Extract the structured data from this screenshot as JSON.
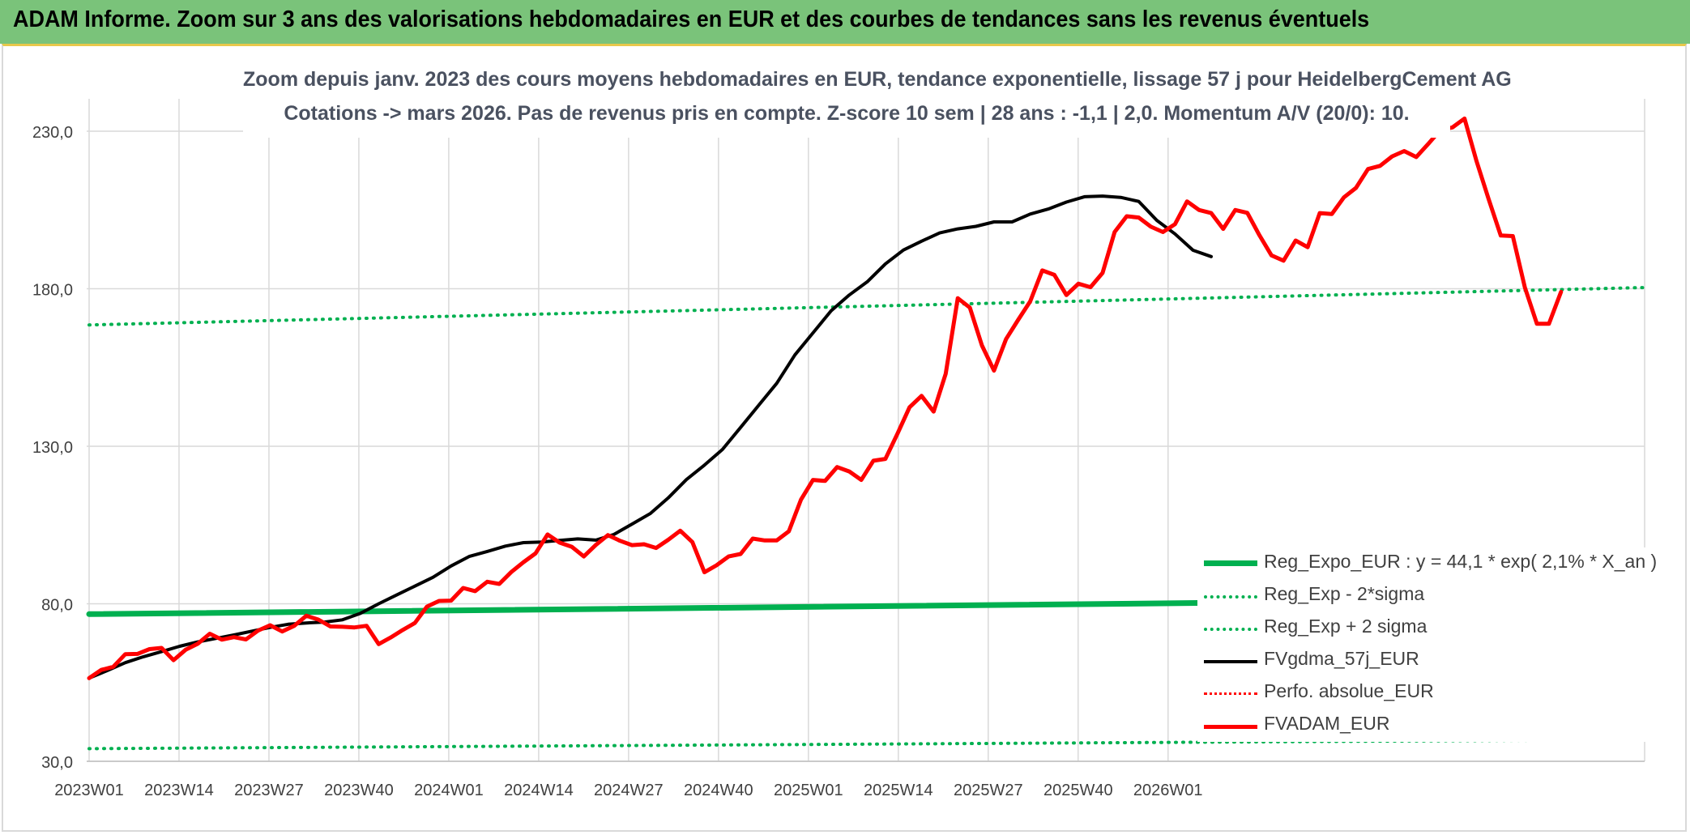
{
  "header": {
    "title": "ADAM Informe. Zoom sur 3 ans des valorisations hebdomadaires en EUR et des courbes de tendances sans les revenus éventuels"
  },
  "chart_data": {
    "type": "line",
    "subtitle_line1": "Zoom depuis janv. 2023 des cours moyens hebdomadaires en EUR, tendance exponentielle, lissage 57 j pour HeidelbergCement AG",
    "subtitle_line2": "Cotations -> mars 2026. Pas de revenus pris en compte. Z-score 10 sem | 28 ans : -1,1 | 2,0. Momentum A/V (20/0): 10.",
    "xlabel": "",
    "ylabel": "",
    "x_tick_labels": [
      "2023W01",
      "2023W14",
      "2023W27",
      "2023W40",
      "2024W01",
      "2024W14",
      "2024W27",
      "2024W40",
      "2025W01",
      "2025W14",
      "2025W27",
      "2025W40",
      "2026W01"
    ],
    "y_tick_labels": [
      "30,0",
      "80,0",
      "130,0",
      "180,0",
      "230,0"
    ],
    "ylim": [
      30,
      230
    ],
    "grid": "vertical and horizontal",
    "legend_position": "bottom-right",
    "colors": {
      "trend": "#00b050",
      "sigma": "#00b050",
      "smooth": "#000000",
      "perf": "#ff0000",
      "adam": "#ff0000"
    },
    "weeks": 132,
    "series": [
      {
        "name": "Reg_Expo_EUR : y = 44,1 * exp( 2,1% *  X_an )",
        "style": "thick-solid",
        "points": [
          [
            0,
            76.7
          ],
          [
            131,
            81.7
          ]
        ]
      },
      {
        "name": "Reg_Exp - 2*sigma",
        "style": "dotted",
        "points": [
          [
            0,
            34.0
          ],
          [
            131,
            36.9
          ]
        ]
      },
      {
        "name": "Reg_Exp + 2 sigma",
        "style": "dotted",
        "points": [
          [
            0,
            168.5
          ],
          [
            131,
            180.4
          ]
        ]
      },
      {
        "name": "FVgdma_57j_EUR",
        "style": "solid",
        "points": [
          [
            0,
            56.4
          ],
          [
            3,
            58.8
          ],
          [
            6,
            61.3
          ],
          [
            9,
            63.2
          ],
          [
            12,
            64.8
          ],
          [
            15,
            66.5
          ],
          [
            18,
            67.9
          ],
          [
            21,
            69.0
          ],
          [
            24,
            70.1
          ],
          [
            27,
            71.3
          ],
          [
            30,
            72.5
          ],
          [
            33,
            73.5
          ],
          [
            36,
            73.9
          ],
          [
            39,
            74.2
          ],
          [
            42,
            74.9
          ],
          [
            45,
            77.0
          ],
          [
            48,
            80.0
          ],
          [
            51,
            82.8
          ],
          [
            54,
            85.6
          ],
          [
            57,
            88.4
          ],
          [
            60,
            92.0
          ],
          [
            63,
            95.0
          ],
          [
            66,
            96.6
          ],
          [
            69,
            98.3
          ],
          [
            72,
            99.4
          ],
          [
            75,
            99.6
          ],
          [
            78,
            100.1
          ],
          [
            81,
            100.6
          ],
          [
            84,
            100.2
          ],
          [
            87,
            102.0
          ],
          [
            90,
            105.3
          ],
          [
            93,
            108.6
          ],
          [
            96,
            113.6
          ],
          [
            99,
            119.4
          ],
          [
            102,
            124.0
          ],
          [
            105,
            129.0
          ],
          [
            108,
            136.0
          ],
          [
            111,
            143.0
          ],
          [
            114,
            150.0
          ],
          [
            117,
            159.0
          ],
          [
            120,
            166.0
          ],
          [
            123,
            173.0
          ],
          [
            126,
            178.0
          ],
          [
            129,
            182.2
          ],
          [
            132,
            187.9
          ],
          [
            135,
            192.3
          ],
          [
            138,
            195.1
          ],
          [
            141,
            197.7
          ],
          [
            144,
            199.0
          ],
          [
            147,
            199.8
          ],
          [
            150,
            201.2
          ],
          [
            153,
            201.2
          ],
          [
            156,
            203.7
          ],
          [
            159,
            205.3
          ],
          [
            162,
            207.5
          ],
          [
            165,
            209.2
          ],
          [
            168,
            209.4
          ],
          [
            171,
            209.0
          ],
          [
            174,
            207.7
          ],
          [
            177,
            201.7
          ],
          [
            180,
            197.4
          ],
          [
            183,
            192.2
          ],
          [
            186,
            190.2
          ]
        ]
      },
      {
        "name": "Perfo. absolue_EUR",
        "style": "dotted",
        "points": []
      },
      {
        "name": "FVADAM_EUR",
        "style": "thick-solid",
        "points": [
          [
            0,
            56.4
          ],
          [
            2,
            59.0
          ],
          [
            4,
            60.0
          ],
          [
            6,
            64.0
          ],
          [
            8,
            64.1
          ],
          [
            10,
            65.6
          ],
          [
            12,
            66.0
          ],
          [
            14,
            62.1
          ],
          [
            16,
            65.4
          ],
          [
            18,
            67.3
          ],
          [
            20,
            70.5
          ],
          [
            22,
            68.6
          ],
          [
            24,
            69.4
          ],
          [
            26,
            68.7
          ],
          [
            28,
            71.5
          ],
          [
            30,
            73.2
          ],
          [
            32,
            71.2
          ],
          [
            34,
            73.0
          ],
          [
            36,
            76.2
          ],
          [
            38,
            75.0
          ],
          [
            40,
            72.8
          ],
          [
            42,
            72.7
          ],
          [
            44,
            72.5
          ],
          [
            46,
            73.0
          ],
          [
            48,
            67.2
          ],
          [
            50,
            69.3
          ],
          [
            52,
            71.7
          ],
          [
            54,
            73.9
          ],
          [
            56,
            79.1
          ],
          [
            58,
            80.9
          ],
          [
            60,
            81.0
          ],
          [
            62,
            85.0
          ],
          [
            64,
            84.0
          ],
          [
            66,
            87.0
          ],
          [
            68,
            86.3
          ],
          [
            70,
            90.1
          ],
          [
            72,
            93.2
          ],
          [
            74,
            96.0
          ],
          [
            76,
            102.0
          ],
          [
            78,
            99.4
          ],
          [
            80,
            98.1
          ],
          [
            82,
            95.0
          ],
          [
            84,
            98.7
          ],
          [
            86,
            101.8
          ],
          [
            88,
            100.0
          ],
          [
            90,
            98.6
          ],
          [
            92,
            98.9
          ],
          [
            94,
            97.7
          ],
          [
            96,
            100.3
          ],
          [
            98,
            103.2
          ],
          [
            100,
            99.6
          ],
          [
            102,
            90.0
          ],
          [
            104,
            92.2
          ],
          [
            106,
            95.0
          ],
          [
            108,
            95.8
          ],
          [
            110,
            100.7
          ],
          [
            112,
            100.1
          ],
          [
            114,
            100.1
          ],
          [
            116,
            103.0
          ],
          [
            118,
            113.0
          ],
          [
            120,
            119.3
          ],
          [
            122,
            119.0
          ],
          [
            124,
            123.4
          ],
          [
            126,
            122.0
          ],
          [
            128,
            119.3
          ],
          [
            130,
            125.4
          ],
          [
            132,
            126.0
          ],
          [
            134,
            134.0
          ],
          [
            136,
            142.4
          ],
          [
            138,
            146.0
          ],
          [
            140,
            141.0
          ],
          [
            142,
            153.0
          ],
          [
            144,
            177.0
          ],
          [
            146,
            174.0
          ],
          [
            148,
            162.0
          ],
          [
            150,
            154.0
          ],
          [
            152,
            164.0
          ],
          [
            154,
            170.1
          ],
          [
            156,
            176.0
          ],
          [
            158,
            185.8
          ],
          [
            160,
            184.4
          ],
          [
            162,
            178.0
          ],
          [
            164,
            181.6
          ],
          [
            166,
            180.5
          ],
          [
            168,
            185.0
          ],
          [
            170,
            198.0
          ],
          [
            172,
            203.0
          ],
          [
            174,
            202.6
          ],
          [
            176,
            199.7
          ],
          [
            178,
            198.0
          ],
          [
            180,
            200.5
          ],
          [
            182,
            207.7
          ],
          [
            184,
            205.0
          ],
          [
            186,
            204.0
          ],
          [
            188,
            199.0
          ],
          [
            190,
            205.0
          ],
          [
            192,
            204.1
          ],
          [
            194,
            197.0
          ],
          [
            196,
            190.6
          ],
          [
            198,
            188.9
          ],
          [
            200,
            195.3
          ],
          [
            202,
            193.2
          ],
          [
            204,
            204.0
          ],
          [
            206,
            203.7
          ],
          [
            208,
            209.0
          ],
          [
            210,
            212.0
          ],
          [
            212,
            218.0
          ],
          [
            214,
            219.0
          ],
          [
            216,
            222.0
          ],
          [
            218,
            223.7
          ],
          [
            220,
            221.8
          ],
          [
            222,
            226.0
          ],
          [
            224,
            230.4
          ],
          [
            226,
            231.2
          ],
          [
            228,
            234.0
          ],
          [
            230,
            220.4
          ],
          [
            232,
            208.4
          ],
          [
            234,
            196.9
          ],
          [
            236,
            196.7
          ],
          [
            238,
            180.5
          ],
          [
            240,
            168.9
          ],
          [
            242,
            168.9
          ],
          [
            244,
            179.0
          ]
        ]
      }
    ]
  }
}
